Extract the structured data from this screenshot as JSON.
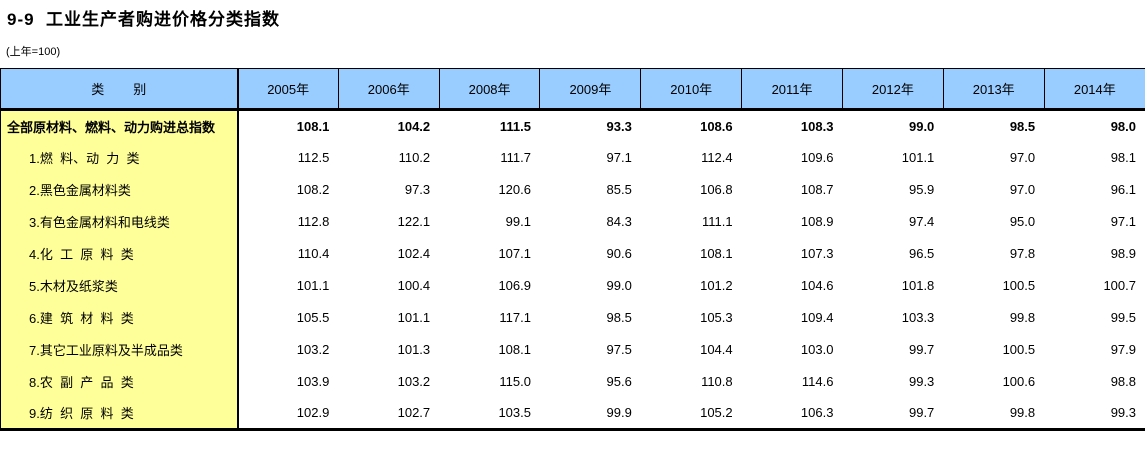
{
  "page": {
    "title": "9-9  工业生产者购进价格分类指数",
    "note": "(上年=100)"
  },
  "table": {
    "category_header": "类        别",
    "year_headers": [
      "2005年",
      "2006年",
      "2008年",
      "2009年",
      "2010年",
      "2011年",
      "2012年",
      "2013年",
      "2014年"
    ],
    "rows": [
      {
        "label": "全部原材料、燃料、动力购进总指数",
        "values": [
          "108.1",
          "104.2",
          "111.5",
          "93.3",
          "108.6",
          "108.3",
          "99.0",
          "98.5",
          "98.0"
        ]
      },
      {
        "label": "1.燃  料、动  力  类",
        "values": [
          "112.5",
          "110.2",
          "111.7",
          "97.1",
          "112.4",
          "109.6",
          "101.1",
          "97.0",
          "98.1"
        ]
      },
      {
        "label": "2.黑色金属材料类",
        "values": [
          "108.2",
          "97.3",
          "120.6",
          "85.5",
          "106.8",
          "108.7",
          "95.9",
          "97.0",
          "96.1"
        ]
      },
      {
        "label": "3.有色金属材料和电线类",
        "values": [
          "112.8",
          "122.1",
          "99.1",
          "84.3",
          "111.1",
          "108.9",
          "97.4",
          "95.0",
          "97.1"
        ]
      },
      {
        "label": "4.化  工  原  料  类",
        "values": [
          "110.4",
          "102.4",
          "107.1",
          "90.6",
          "108.1",
          "107.3",
          "96.5",
          "97.8",
          "98.9"
        ]
      },
      {
        "label": "5.木材及纸浆类",
        "values": [
          "101.1",
          "100.4",
          "106.9",
          "99.0",
          "101.2",
          "104.6",
          "101.8",
          "100.5",
          "100.7"
        ]
      },
      {
        "label": "6.建  筑  材  料  类",
        "values": [
          "105.5",
          "101.1",
          "117.1",
          "98.5",
          "105.3",
          "109.4",
          "103.3",
          "99.8",
          "99.5"
        ]
      },
      {
        "label": "7.其它工业原料及半成品类",
        "values": [
          "103.2",
          "101.3",
          "108.1",
          "97.5",
          "104.4",
          "103.0",
          "99.7",
          "100.5",
          "97.9"
        ]
      },
      {
        "label": "8.农  副  产  品  类",
        "values": [
          "103.9",
          "103.2",
          "115.0",
          "95.6",
          "110.8",
          "114.6",
          "99.3",
          "100.6",
          "98.8"
        ]
      },
      {
        "label": "9.纺  织  原  料  类",
        "values": [
          "102.9",
          "102.7",
          "103.5",
          "99.9",
          "105.2",
          "106.3",
          "99.7",
          "99.8",
          "99.3"
        ]
      }
    ]
  },
  "colors": {
    "header_bg": "#99CCFF",
    "category_bg": "#FFFF99",
    "border": "#000000",
    "page_bg": "#FFFFFF"
  }
}
